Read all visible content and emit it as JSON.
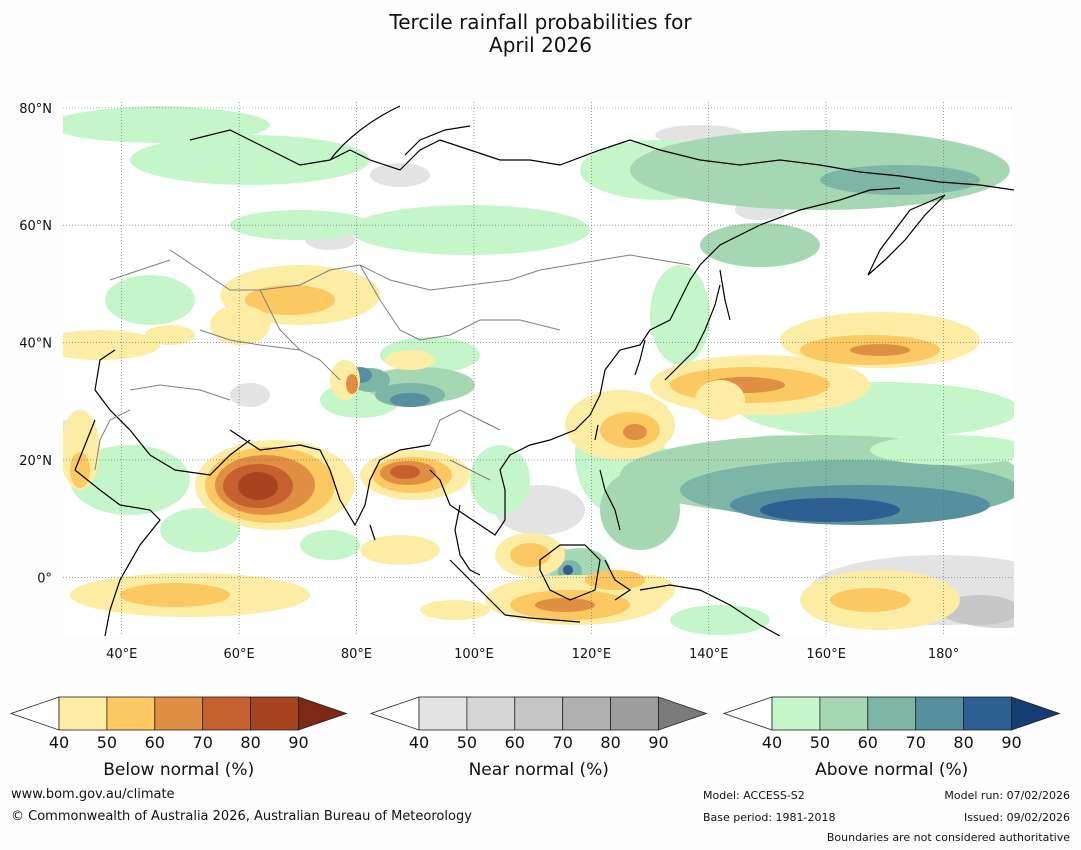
{
  "title": {
    "line1": "Tercile rainfall probabilities for",
    "line2": "April 2026"
  },
  "map": {
    "lat_labels": [
      "80°N",
      "60°N",
      "40°N",
      "20°N",
      "0°"
    ],
    "lon_labels": [
      "40°E",
      "60°E",
      "80°E",
      "100°E",
      "120°E",
      "140°E",
      "160°E",
      "180°"
    ],
    "colors": {
      "below": [
        "#fdeca3",
        "#fbc862",
        "#e08f42",
        "#c7602f",
        "#a6441f",
        "#7c2a13"
      ],
      "near": [
        "#e3e3e3",
        "#d6d6d6",
        "#c6c6c6",
        "#b0b0b0",
        "#9e9e9e",
        "#7b7b7b"
      ],
      "above": [
        "#c4f6ca",
        "#a5d8b2",
        "#7db5a6",
        "#568f9d",
        "#2e5f92",
        "#153d73"
      ],
      "land_outline": "#000000",
      "border_outline": "#7f7f7f"
    }
  },
  "legends": [
    {
      "key": "below",
      "ticks": [
        "40",
        "50",
        "60",
        "70",
        "80",
        "90"
      ],
      "title": "Below normal (%)"
    },
    {
      "key": "near",
      "ticks": [
        "40",
        "50",
        "60",
        "70",
        "80",
        "90"
      ],
      "title": "Near normal (%)"
    },
    {
      "key": "above",
      "ticks": [
        "40",
        "50",
        "60",
        "70",
        "80",
        "90"
      ],
      "title": "Above normal (%)"
    }
  ],
  "footer": {
    "website": "www.bom.gov.au/climate",
    "copyright": "© Commonwealth of Australia 2026, Australian Bureau of Meteorology",
    "model": "Model: ACCESS-S2",
    "base_period": "Base period: 1981-2018",
    "model_run": "Model run: 07/02/2026",
    "issued": "Issued: 09/02/2026",
    "disclaimer": "Boundaries are not considered authoritative"
  }
}
